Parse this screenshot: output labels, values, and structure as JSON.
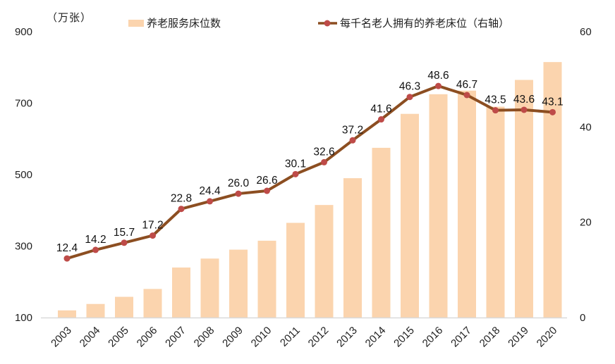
{
  "unit_label": "（万张）",
  "legend": {
    "bar_label": "养老服务床位数",
    "line_label": "每千名老人拥有的养老床位（右轴）"
  },
  "chart_data": {
    "type": "combo-bar-line",
    "title": "",
    "categories": [
      "2003",
      "2004",
      "2005",
      "2006",
      "2007",
      "2008",
      "2009",
      "2010",
      "2011",
      "2012",
      "2013",
      "2014",
      "2015",
      "2016",
      "2017",
      "2018",
      "2019",
      "2020"
    ],
    "series": [
      {
        "name": "养老服务床位数",
        "type": "bar",
        "axis": "left",
        "unit": "万张",
        "approximate": true,
        "values": [
          120,
          138,
          158,
          180,
          240,
          265,
          290,
          315,
          365,
          415,
          490,
          575,
          670,
          725,
          735,
          690,
          765,
          815
        ]
      },
      {
        "name": "每千名老人拥有的养老床位（右轴）",
        "type": "line",
        "axis": "right",
        "values": [
          12.4,
          14.2,
          15.7,
          17.2,
          22.8,
          24.4,
          26.0,
          26.6,
          30.1,
          32.6,
          37.2,
          41.6,
          46.3,
          48.6,
          46.7,
          43.5,
          43.6,
          43.1
        ],
        "labels": [
          "12.4",
          "14.2",
          "15.7",
          "17.2",
          "22.8",
          "24.4",
          "26.0",
          "26.6",
          "30.1",
          "32.6",
          "37.2",
          "41.6",
          "46.3",
          "48.6",
          "46.7",
          "43.5",
          "43.6",
          "43.1"
        ]
      }
    ],
    "left_axis": {
      "min": 100,
      "max": 900,
      "ticks": [
        100,
        300,
        500,
        700,
        900
      ]
    },
    "right_axis": {
      "min": 0,
      "max": 60,
      "ticks": [
        0,
        20,
        40,
        60
      ]
    },
    "grid": false,
    "legend_position": "top",
    "colors": {
      "bar": "#FBD4AE",
      "line": "#8C4E21",
      "marker": "#BE4B48",
      "axis_line": "#D9D9D9",
      "text": "#1F1F1F"
    }
  }
}
